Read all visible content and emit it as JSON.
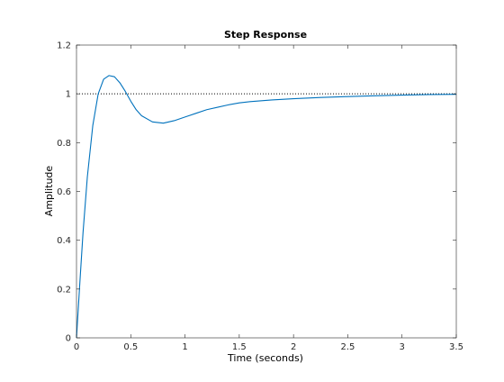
{
  "chart_data": {
    "type": "line",
    "title": "Step Response",
    "xlabel": "Time (seconds)",
    "ylabel": "Amplitude",
    "xlim": [
      0,
      3.5
    ],
    "ylim": [
      0,
      1.2
    ],
    "xticks": [
      0,
      0.5,
      1,
      1.5,
      2,
      2.5,
      3,
      3.5
    ],
    "xtick_labels": [
      "0",
      "0.5",
      "1",
      "1.5",
      "2",
      "2.5",
      "3",
      "3.5"
    ],
    "yticks": [
      0,
      0.2,
      0.4,
      0.6,
      0.8,
      1,
      1.2
    ],
    "ytick_labels": [
      "0",
      "0.2",
      "0.4",
      "0.6",
      "0.8",
      "1",
      "1.2"
    ],
    "grid": false,
    "reference_line": {
      "y": 1,
      "style": "dotted",
      "color": "#000000"
    },
    "series": [
      {
        "color": "#0072BD",
        "x": [
          0,
          0.03,
          0.06,
          0.1,
          0.15,
          0.2,
          0.25,
          0.3,
          0.35,
          0.4,
          0.45,
          0.5,
          0.55,
          0.6,
          0.7,
          0.8,
          0.9,
          1.0,
          1.1,
          1.2,
          1.3,
          1.4,
          1.5,
          1.6,
          1.8,
          2.0,
          2.25,
          2.5,
          2.75,
          3.0,
          3.25,
          3.5
        ],
        "y": [
          0,
          0.22,
          0.43,
          0.66,
          0.87,
          1.0,
          1.06,
          1.075,
          1.07,
          1.045,
          1.01,
          0.97,
          0.935,
          0.91,
          0.885,
          0.88,
          0.89,
          0.905,
          0.92,
          0.935,
          0.945,
          0.955,
          0.963,
          0.968,
          0.975,
          0.98,
          0.985,
          0.989,
          0.992,
          0.995,
          0.997,
          0.998
        ]
      }
    ]
  }
}
